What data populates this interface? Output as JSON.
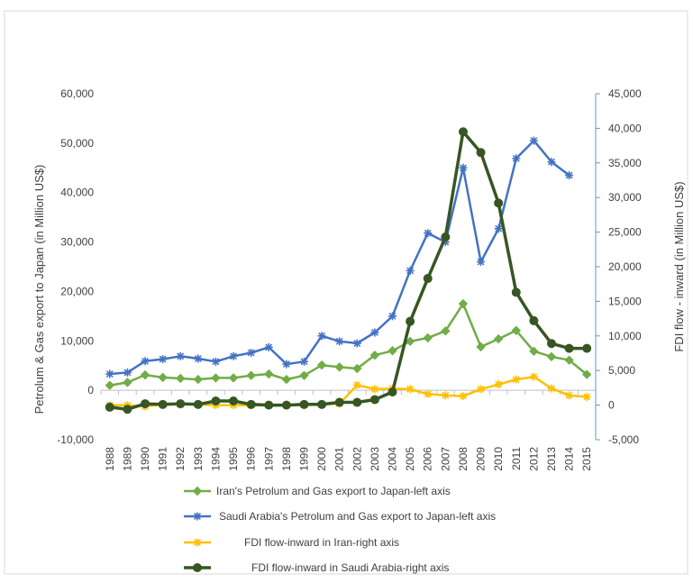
{
  "chart_data": {
    "type": "line",
    "title": "",
    "years": [
      "1988",
      "1989",
      "1990",
      "1991",
      "1992",
      "1993",
      "1994",
      "1995",
      "1996",
      "1997",
      "1998",
      "1999",
      "2000",
      "2001",
      "2002",
      "2003",
      "2004",
      "2005",
      "2006",
      "2007",
      "2008",
      "2009",
      "2010",
      "2011",
      "2012",
      "2013",
      "2014",
      "2015"
    ],
    "left_axis": {
      "label": "Petrolum & Gas export to Japan (in Million US$)",
      "min": -10000,
      "max": 60000,
      "step": 10000,
      "ticks": [
        "-10,000",
        "0",
        "10,000",
        "20,000",
        "30,000",
        "40,000",
        "50,000",
        "60,000"
      ]
    },
    "right_axis": {
      "label": "FDI flow - inward (in Million US$)",
      "min": -5000,
      "max": 45000,
      "step": 5000,
      "ticks": [
        "-5,000",
        "0",
        "5,000",
        "10,000",
        "15,000",
        "20,000",
        "25,000",
        "30,000",
        "35,000",
        "40,000",
        "45,000"
      ]
    },
    "series": [
      {
        "name": "Iran's Petrolum and Gas export to Japan-left axis",
        "axis": "left",
        "color": "#70ad47",
        "marker": "diamond",
        "values": [
          1000,
          1600,
          3100,
          2600,
          2400,
          2200,
          2500,
          2500,
          3000,
          3300,
          2200,
          3000,
          5100,
          4700,
          4400,
          7100,
          8000,
          9900,
          10600,
          12000,
          17500,
          8800,
          10400,
          12100,
          7900,
          6800,
          6100,
          3200
        ]
      },
      {
        "name": "Saudi Arabia's Petrolum and Gas export to Japan-left axis",
        "axis": "left",
        "color": "#4472c4",
        "marker": "asterisk",
        "values": [
          3300,
          3600,
          5900,
          6300,
          6900,
          6400,
          5800,
          6900,
          7600,
          8700,
          5300,
          5800,
          11000,
          9900,
          9500,
          11700,
          15000,
          24200,
          31800,
          30000,
          45000,
          26000,
          32700,
          46900,
          50500,
          46200,
          43500,
          null
        ]
      },
      {
        "name": "FDI flow-inward in Iran-right axis",
        "axis": "right",
        "color": "#ffc000",
        "marker": "asterisk",
        "values": [
          0,
          0,
          -200,
          100,
          100,
          100,
          0,
          0,
          0,
          0,
          0,
          0,
          100,
          200,
          2900,
          2300,
          2400,
          2300,
          1600,
          1400,
          1300,
          2300,
          3000,
          3700,
          4100,
          2400,
          1400,
          1200
        ]
      },
      {
        "name": "FDI flow-inward in Saudi Arabia-right axis",
        "axis": "right",
        "color": "#375623",
        "marker": "circle",
        "values": [
          -300,
          -600,
          200,
          100,
          200,
          100,
          600,
          600,
          100,
          0,
          0,
          100,
          100,
          400,
          400,
          800,
          1900,
          12100,
          18300,
          24300,
          39500,
          36500,
          29200,
          16300,
          12200,
          8900,
          8200,
          8200
        ]
      }
    ]
  }
}
